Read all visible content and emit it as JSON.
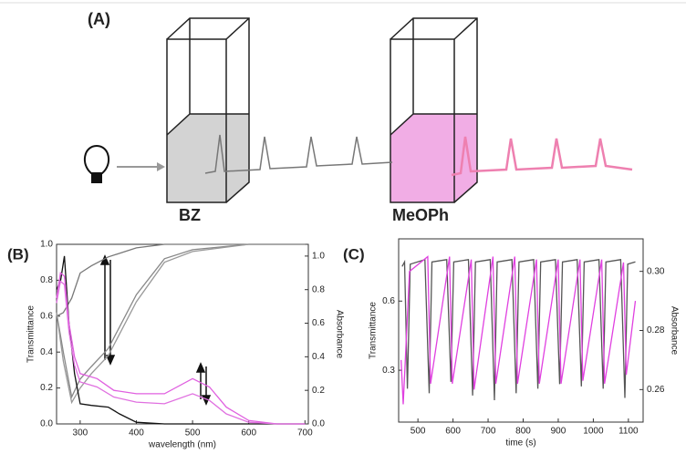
{
  "panel_a": {
    "label": "(A)",
    "cuvettes": [
      "BZ",
      "MeOPh"
    ]
  },
  "chart_data": [
    {
      "type": "line",
      "label": "(B)",
      "xlabel": "wavelength (nm)",
      "ylabel": "Transmittance",
      "y2label": "Absorbance",
      "xlim": [
        258,
        706
      ],
      "xticks": [
        300,
        400,
        500,
        600,
        700
      ],
      "ylim": [
        0,
        1.0
      ],
      "yticks": [
        {
          "value": 0,
          "label": "0.0"
        },
        0.2,
        0.4,
        0.6,
        0.8,
        {
          "value": 1,
          "label": "1.0"
        }
      ],
      "y2lim": [
        0,
        1.07
      ],
      "y2ticks": [
        {
          "value": 0,
          "label": "0.0"
        },
        0.2,
        0.4,
        0.6,
        0.8,
        {
          "value": 1,
          "label": "1.0"
        }
      ],
      "series": [
        {
          "color": "#777777",
          "x": [
            258,
            270,
            285,
            300,
            320,
            350,
            400,
            450,
            500,
            600,
            700
          ],
          "values": [
            0.6,
            0.62,
            0.7,
            0.84,
            0.88,
            0.93,
            0.98,
            1.0,
            1.0,
            1.0,
            1.0
          ]
        },
        {
          "color": "#888888",
          "x": [
            258,
            270,
            285,
            300,
            320,
            350,
            400,
            450,
            500,
            600,
            700
          ],
          "values": [
            0.62,
            0.4,
            0.15,
            0.25,
            0.32,
            0.42,
            0.72,
            0.92,
            0.97,
            1.0,
            1.0
          ]
        },
        {
          "color": "#999999",
          "x": [
            258,
            270,
            285,
            300,
            320,
            350,
            400,
            450,
            500,
            600,
            700
          ],
          "values": [
            0.62,
            0.35,
            0.12,
            0.2,
            0.28,
            0.38,
            0.68,
            0.9,
            0.96,
            1.0,
            1.0
          ]
        },
        {
          "color": "#111111",
          "axis": "y2",
          "x": [
            258,
            265,
            272,
            280,
            290,
            300,
            320,
            350,
            370,
            400,
            450,
            700
          ],
          "values": [
            0.8,
            0.85,
            1.0,
            0.6,
            0.3,
            0.12,
            0.11,
            0.1,
            0.06,
            0.01,
            0,
            0
          ]
        },
        {
          "color": "#e060e0",
          "axis": "y2",
          "x": [
            258,
            265,
            272,
            280,
            290,
            300,
            330,
            360,
            400,
            450,
            500,
            530,
            560,
            600,
            650,
            700
          ],
          "values": [
            0.75,
            0.9,
            0.88,
            0.6,
            0.4,
            0.3,
            0.27,
            0.2,
            0.18,
            0.18,
            0.27,
            0.22,
            0.1,
            0.02,
            0,
            0
          ]
        },
        {
          "color": "#e070e0",
          "axis": "y2",
          "x": [
            258,
            265,
            272,
            280,
            290,
            300,
            330,
            360,
            400,
            450,
            500,
            530,
            560,
            600,
            650,
            700
          ],
          "values": [
            0.72,
            0.85,
            0.83,
            0.55,
            0.35,
            0.25,
            0.22,
            0.16,
            0.13,
            0.12,
            0.18,
            0.14,
            0.06,
            0.01,
            0,
            0
          ]
        }
      ]
    },
    {
      "type": "line",
      "label": "(C)",
      "xlabel": "time (s)",
      "ylabel": "Transmittance",
      "y2label": "Absorbance",
      "xlim": [
        445,
        1142
      ],
      "xticks": [
        500,
        600,
        700,
        800,
        900,
        1000,
        1100
      ],
      "ylim": [
        0.075,
        0.87
      ],
      "yticks": [
        0.3,
        0.6
      ],
      "y2lim": [
        0.249,
        0.311
      ],
      "y2ticks": [
        0.26,
        0.28,
        {
          "value": 0.3,
          "label": "0.30"
        }
      ],
      "series": [
        {
          "color": "#555555",
          "x": [
            455,
            462,
            470,
            478,
            520,
            532,
            540,
            582,
            594,
            602,
            644,
            656,
            664,
            706,
            718,
            726,
            768,
            780,
            788,
            830,
            842,
            850,
            892,
            904,
            912,
            954,
            966,
            974,
            1016,
            1028,
            1036,
            1078,
            1090,
            1098,
            1120
          ],
          "values": [
            0.75,
            0.77,
            0.22,
            0.76,
            0.78,
            0.2,
            0.77,
            0.78,
            0.25,
            0.77,
            0.78,
            0.19,
            0.77,
            0.78,
            0.17,
            0.77,
            0.78,
            0.2,
            0.77,
            0.78,
            0.22,
            0.77,
            0.78,
            0.24,
            0.77,
            0.78,
            0.23,
            0.77,
            0.78,
            0.22,
            0.77,
            0.78,
            0.18,
            0.76,
            0.77
          ]
        },
        {
          "color": "#e040e0",
          "axis": "y2",
          "x": [
            452,
            458,
            476,
            528,
            536,
            590,
            598,
            652,
            660,
            714,
            722,
            776,
            784,
            838,
            846,
            900,
            908,
            962,
            970,
            1024,
            1032,
            1086,
            1094,
            1120
          ],
          "values": [
            0.27,
            0.255,
            0.3,
            0.305,
            0.262,
            0.305,
            0.262,
            0.304,
            0.26,
            0.305,
            0.262,
            0.305,
            0.262,
            0.304,
            0.262,
            0.304,
            0.262,
            0.304,
            0.263,
            0.304,
            0.262,
            0.303,
            0.265,
            0.29
          ]
        }
      ]
    }
  ]
}
